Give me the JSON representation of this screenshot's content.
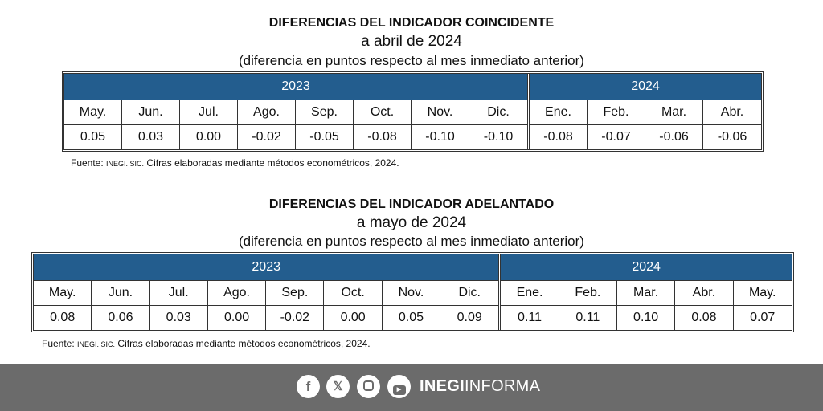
{
  "table1": {
    "title": "DIFERENCIAS DEL INDICADOR COINCIDENTE",
    "subtitle": "a abril de 2024",
    "note": "(diferencia en puntos respecto al mes inmediato anterior)",
    "groups": [
      {
        "year": "2023",
        "months": [
          "May.",
          "Jun.",
          "Jul.",
          "Ago.",
          "Sep.",
          "Oct.",
          "Nov.",
          "Dic."
        ],
        "values": [
          "0.05",
          "0.03",
          "0.00",
          "-0.02",
          "-0.05",
          "-0.08",
          "-0.10",
          "-0.10"
        ]
      },
      {
        "year": "2024",
        "months": [
          "Ene.",
          "Feb.",
          "Mar.",
          "Abr."
        ],
        "values": [
          "-0.08",
          "-0.07",
          "-0.06",
          "-0.06"
        ]
      }
    ],
    "source_label": "Fuente:",
    "source_org": "INEGI. SIC.",
    "source_text": "Cifras elaboradas mediante métodos econométricos, 2024."
  },
  "table2": {
    "title": "DIFERENCIAS DEL INDICADOR ADELANTADO",
    "subtitle": "a mayo de 2024",
    "note": "(diferencia en puntos respecto al mes inmediato anterior)",
    "groups": [
      {
        "year": "2023",
        "months": [
          "May.",
          "Jun.",
          "Jul.",
          "Ago.",
          "Sep.",
          "Oct.",
          "Nov.",
          "Dic."
        ],
        "values": [
          "0.08",
          "0.06",
          "0.03",
          "0.00",
          "-0.02",
          "0.00",
          "0.05",
          "0.09"
        ]
      },
      {
        "year": "2024",
        "months": [
          "Ene.",
          "Feb.",
          "Mar.",
          "Abr.",
          "May."
        ],
        "values": [
          "0.11",
          "0.11",
          "0.10",
          "0.08",
          "0.07"
        ]
      }
    ],
    "source_label": "Fuente:",
    "source_org": "INEGI. SIC.",
    "source_text": "Cifras elaboradas mediante métodos econométricos, 2024."
  },
  "footer": {
    "icons": [
      "facebook-icon",
      "x-icon",
      "instagram-icon",
      "youtube-icon"
    ],
    "brand_bold": "INEGI",
    "brand_light": "INFORMA",
    "color": "#6b6b6b",
    "header_color": "#235d8e"
  }
}
